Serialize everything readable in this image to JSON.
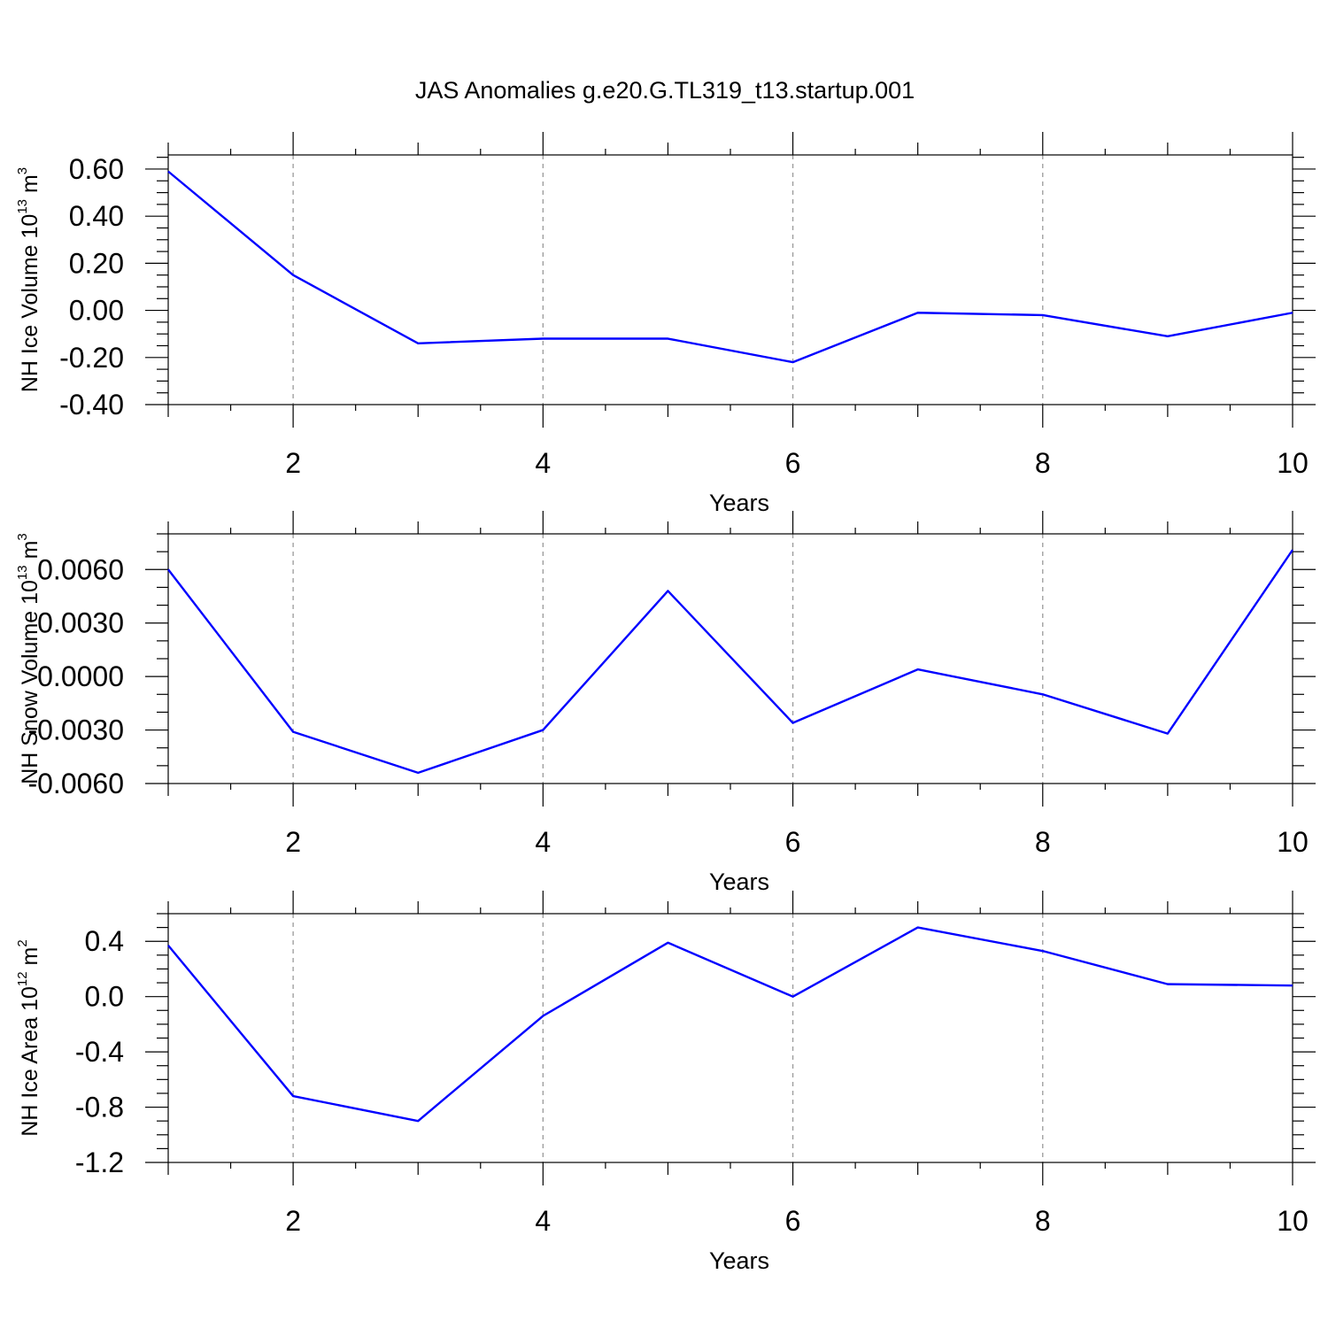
{
  "figure_title": "JAS Anomalies g.e20.G.TL319_t13.startup.001",
  "colors": {
    "series": "#0000ff",
    "grid": "#9a9a9a",
    "axes": "#000000"
  },
  "chart_data": [
    {
      "type": "line",
      "name": "nh-ice-volume",
      "ylabel": {
        "text": "NH Ice Volume 10",
        "sup": "13",
        "unit": " m",
        "unit_sup": "3"
      },
      "xlabel": "Years",
      "x": [
        1,
        2,
        3,
        4,
        5,
        6,
        7,
        8,
        9,
        10
      ],
      "xlim": [
        1,
        10
      ],
      "xticks": [
        2,
        4,
        6,
        8,
        10
      ],
      "xtick_labels": [
        "2",
        "4",
        "6",
        "8",
        "10"
      ],
      "ylim": [
        -0.4,
        0.66
      ],
      "yticks": [
        0.6,
        0.4,
        0.2,
        0.0,
        -0.2,
        -0.4
      ],
      "ytick_labels": [
        "0.60",
        "0.40",
        "0.20",
        "0.00",
        "-0.20",
        "-0.40"
      ],
      "yminor_step": 0.05,
      "series": [
        {
          "name": "NH Ice Volume",
          "values": [
            0.59,
            0.15,
            -0.14,
            -0.12,
            -0.12,
            -0.22,
            -0.01,
            -0.02,
            -0.11,
            -0.01
          ]
        }
      ]
    },
    {
      "type": "line",
      "name": "nh-snow-volume",
      "ylabel": {
        "text": "NH Snow Volume 10",
        "sup": "13",
        "unit": " m",
        "unit_sup": "3"
      },
      "xlabel": "Years",
      "x": [
        1,
        2,
        3,
        4,
        5,
        6,
        7,
        8,
        9,
        10
      ],
      "xlim": [
        1,
        10
      ],
      "xticks": [
        2,
        4,
        6,
        8,
        10
      ],
      "xtick_labels": [
        "2",
        "4",
        "6",
        "8",
        "10"
      ],
      "ylim": [
        -0.006,
        0.008
      ],
      "yticks": [
        0.006,
        0.003,
        0.0,
        -0.003,
        -0.006
      ],
      "ytick_labels": [
        "0.0060",
        "0.0030",
        "0.0000",
        "-0.0030",
        "-0.0060"
      ],
      "yminor_step": 0.001,
      "series": [
        {
          "name": "NH Snow Volume",
          "values": [
            0.006,
            -0.0031,
            -0.0054,
            -0.003,
            0.0048,
            -0.0026,
            0.0004,
            -0.001,
            -0.0032,
            0.0071
          ]
        }
      ]
    },
    {
      "type": "line",
      "name": "nh-ice-area",
      "ylabel": {
        "text": "NH Ice Area 10",
        "sup": "12",
        "unit": " m",
        "unit_sup": "2"
      },
      "xlabel": "Years",
      "x": [
        1,
        2,
        3,
        4,
        5,
        6,
        7,
        8,
        9,
        10
      ],
      "xlim": [
        1,
        10
      ],
      "xticks": [
        2,
        4,
        6,
        8,
        10
      ],
      "xtick_labels": [
        "2",
        "4",
        "6",
        "8",
        "10"
      ],
      "ylim": [
        -1.2,
        0.6
      ],
      "yticks": [
        0.4,
        0.0,
        -0.4,
        -0.8,
        -1.2
      ],
      "ytick_labels": [
        "0.4",
        "0.0",
        "-0.4",
        "-0.8",
        "-1.2"
      ],
      "yminor_step": 0.1,
      "series": [
        {
          "name": "NH Ice Area",
          "values": [
            0.37,
            -0.72,
            -0.9,
            -0.14,
            0.39,
            0.0,
            0.5,
            0.33,
            0.09,
            0.08
          ]
        }
      ]
    }
  ]
}
